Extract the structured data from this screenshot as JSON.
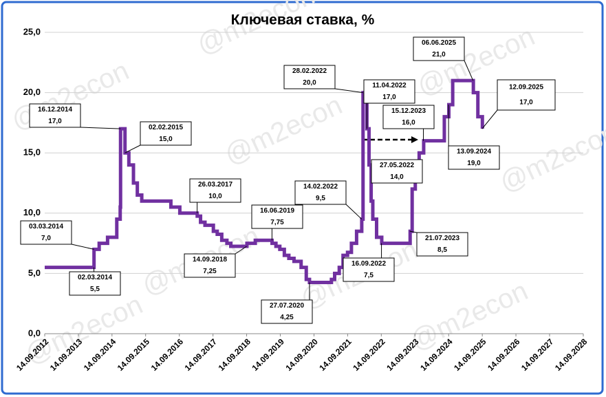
{
  "chart_data": {
    "type": "step-line",
    "title": "Ключевая ставка, %",
    "watermark": "@m2econ",
    "xlim": [
      "14.09.2012",
      "14.09.2028"
    ],
    "xticks": [
      "14.09.2012",
      "14.09.2013",
      "14.09.2014",
      "14.09.2015",
      "14.09.2016",
      "14.09.2017",
      "14.09.2018",
      "14.09.2019",
      "14.09.2020",
      "14.09.2021",
      "14.09.2022",
      "14.09.2023",
      "14.09.2024",
      "14.09.2025",
      "14.09.2026",
      "14.09.2027",
      "14.09.2028"
    ],
    "ylim": [
      0,
      25
    ],
    "yticks": [
      {
        "value": 0,
        "label": "0,0"
      },
      {
        "value": 5,
        "label": "5,0"
      },
      {
        "value": 10,
        "label": "10,0"
      },
      {
        "value": 15,
        "label": "15,0"
      },
      {
        "value": 20,
        "label": "20,0"
      },
      {
        "value": 25,
        "label": "25,0"
      }
    ],
    "grid": true,
    "series": [
      {
        "color": "#7030a0",
        "x": [
          "14.09.2012",
          "03.03.2014",
          "28.04.2014",
          "28.07.2014",
          "05.11.2014",
          "12.12.2014",
          "16.12.2014",
          "02.02.2015",
          "16.03.2015",
          "05.05.2015",
          "16.06.2015",
          "03.08.2015",
          "14.06.2016",
          "19.09.2016",
          "27.03.2017",
          "02.05.2017",
          "19.06.2017",
          "18.09.2017",
          "30.10.2017",
          "18.12.2017",
          "12.02.2018",
          "26.03.2018",
          "17.09.2018",
          "17.12.2018",
          "17.06.2019",
          "29.07.2019",
          "09.09.2019",
          "28.10.2019",
          "16.12.2019",
          "10.02.2020",
          "27.04.2020",
          "22.06.2020",
          "27.07.2020",
          "22.03.2021",
          "26.04.2021",
          "15.06.2021",
          "26.07.2021",
          "13.09.2021",
          "25.10.2021",
          "20.12.2021",
          "14.02.2022",
          "28.02.2022",
          "11.04.2022",
          "04.05.2022",
          "27.05.2022",
          "14.06.2022",
          "25.07.2022",
          "19.09.2022",
          "24.07.2023",
          "15.08.2023",
          "18.09.2023",
          "30.10.2023",
          "18.12.2023",
          "29.07.2024",
          "16.09.2024",
          "28.10.2024",
          "09.06.2025",
          "28.07.2025",
          "15.09.2025"
        ],
        "values": [
          5.5,
          7,
          7.5,
          8,
          9.5,
          10.5,
          17,
          15,
          14,
          12.5,
          11.5,
          11,
          10.5,
          10,
          9.75,
          9.25,
          9,
          8.5,
          8.25,
          7.75,
          7.5,
          7.25,
          7.5,
          7.75,
          7.5,
          7.25,
          7,
          6.5,
          6.25,
          6,
          5.5,
          4.5,
          4.25,
          4.5,
          5,
          5.5,
          6.5,
          6.75,
          7.5,
          8.5,
          9.5,
          20,
          17,
          14,
          11,
          9.5,
          8,
          7.5,
          8.5,
          12,
          13,
          15,
          16,
          18,
          19,
          21,
          20,
          18,
          17
        ]
      }
    ],
    "annotations": [
      {
        "x": "03.03.2014",
        "y": 7,
        "label": "7,0"
      },
      {
        "x": "02.03.2014",
        "y": 5.5,
        "label": "5,5"
      },
      {
        "x": "16.12.2014",
        "y": 17,
        "label": "17,0"
      },
      {
        "x": "02.02.2015",
        "y": 15,
        "label": "15,0"
      },
      {
        "x": "26.03.2017",
        "y": 10,
        "label": "10,0"
      },
      {
        "x": "14.09.2018",
        "y": 7.25,
        "label": "7,25"
      },
      {
        "x": "16.06.2019",
        "y": 7.75,
        "label": "7,75"
      },
      {
        "x": "27.07.2020",
        "y": 4.25,
        "label": "4,25"
      },
      {
        "x": "14.02.2022",
        "y": 9.5,
        "label": "9,5"
      },
      {
        "x": "28.02.2022",
        "y": 20,
        "label": "20,0"
      },
      {
        "x": "11.04.2022",
        "y": 17,
        "label": "17,0"
      },
      {
        "x": "27.05.2022",
        "y": 14,
        "label": "14,0"
      },
      {
        "x": "16.09.2022",
        "y": 7.5,
        "label": "7,5"
      },
      {
        "x": "21.07.2023",
        "y": 8.5,
        "label": "8,5"
      },
      {
        "x": "15.12.2023",
        "y": 16,
        "label": "16,0"
      },
      {
        "x": "13.09.2024",
        "y": 19,
        "label": "19,0"
      },
      {
        "x": "06.06.2025",
        "y": 21,
        "label": "21,0"
      },
      {
        "x": "12.09.2025",
        "y": 17,
        "label": "17,0"
      }
    ]
  }
}
